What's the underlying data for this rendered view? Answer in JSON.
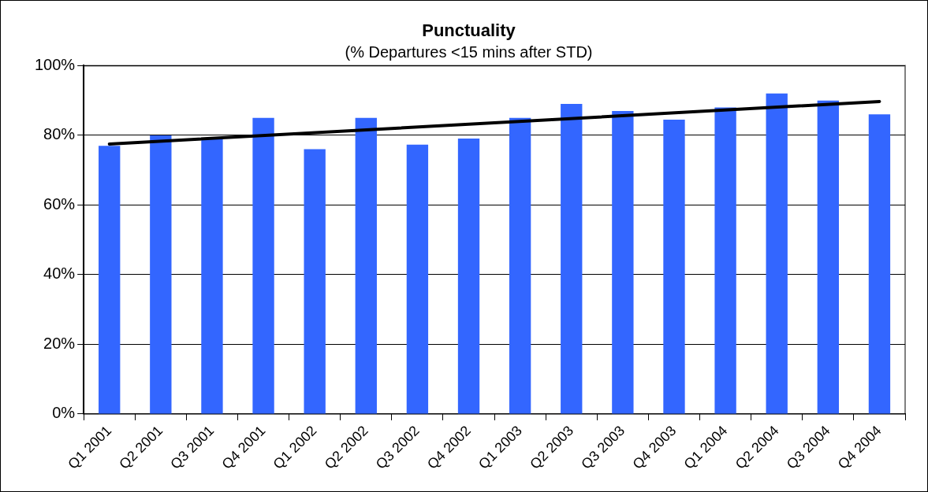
{
  "chart_data": {
    "type": "bar",
    "title": "Punctuality",
    "subtitle": "(% Departures <15 mins after STD)",
    "categories": [
      "Q1 2001",
      "Q2 2001",
      "Q3 2001",
      "Q4 2001",
      "Q1 2002",
      "Q2 2002",
      "Q3 2002",
      "Q4 2002",
      "Q1 2003",
      "Q2 2003",
      "Q3 2003",
      "Q4 2003",
      "Q1 2004",
      "Q2 2004",
      "Q3 2004",
      "Q4 2004"
    ],
    "series": [
      {
        "color": "#3366ff",
        "values": [
          77,
          80,
          79,
          85,
          76,
          85,
          77.3,
          79.1,
          85,
          89,
          87,
          84.5,
          88,
          92,
          90,
          86
        ]
      },
      {
        "type": "line",
        "color": "#000000",
        "x": [
          "Q1 2001",
          "Q4 2004"
        ],
        "values": [
          77.5,
          89.7
        ]
      }
    ],
    "ylim": [
      0,
      100
    ],
    "yticks": [
      {
        "value": 0,
        "label": "0%"
      },
      {
        "value": 20,
        "label": "20%"
      },
      {
        "value": 40,
        "label": "40%"
      },
      {
        "value": 60,
        "label": "60%"
      },
      {
        "value": 80,
        "label": "80%"
      },
      {
        "value": 100,
        "label": "100%"
      }
    ],
    "grid": "y",
    "legend": false
  }
}
